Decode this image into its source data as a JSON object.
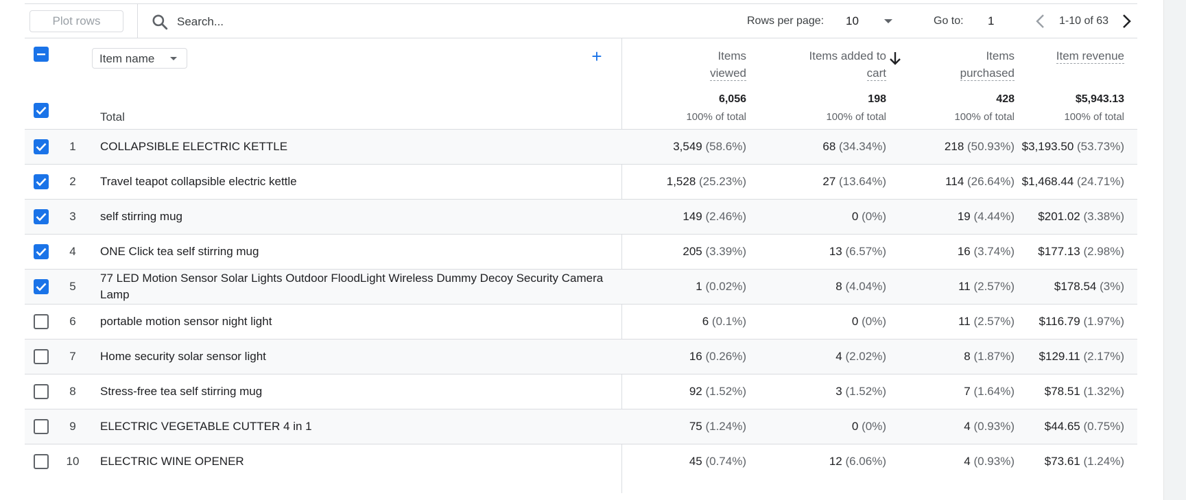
{
  "toolbar": {
    "plot_rows_label": "Plot rows",
    "search_placeholder": "Search...",
    "rows_per_page_label": "Rows per page:",
    "rows_per_page_value": "10",
    "goto_label": "Go to:",
    "goto_value": "1",
    "page_range": "1-10 of 63"
  },
  "header": {
    "dimension_label": "Item name",
    "columns": [
      {
        "line1": "Items",
        "line2": "viewed"
      },
      {
        "line1": "Items added to",
        "line2": "cart"
      },
      {
        "line1": "Items",
        "line2": "purchased"
      },
      {
        "line1": "Item revenue",
        "line2": ""
      }
    ],
    "sorted_column": "Items purchased"
  },
  "totals": {
    "label": "Total",
    "values": [
      "6,056",
      "198",
      "428",
      "$5,943.13"
    ],
    "pcts": [
      "100% of total",
      "100% of total",
      "100% of total",
      "100% of total"
    ]
  },
  "rows": [
    {
      "num": "1",
      "name": "COLLAPSIBLE ELECTRIC KETTLE",
      "checked": true,
      "cells": [
        [
          "3,549",
          "(58.6%)"
        ],
        [
          "68",
          "(34.34%)"
        ],
        [
          "218",
          "(50.93%)"
        ],
        [
          "$3,193.50",
          "(53.73%)"
        ]
      ]
    },
    {
      "num": "2",
      "name": "Travel teapot collapsible electric kettle",
      "checked": true,
      "cells": [
        [
          "1,528",
          "(25.23%)"
        ],
        [
          "27",
          "(13.64%)"
        ],
        [
          "114",
          "(26.64%)"
        ],
        [
          "$1,468.44",
          "(24.71%)"
        ]
      ]
    },
    {
      "num": "3",
      "name": "self stirring mug",
      "checked": true,
      "cells": [
        [
          "149",
          "(2.46%)"
        ],
        [
          "0",
          "(0%)"
        ],
        [
          "19",
          "(4.44%)"
        ],
        [
          "$201.02",
          "(3.38%)"
        ]
      ]
    },
    {
      "num": "4",
      "name": "ONE Click tea self stirring mug",
      "checked": true,
      "cells": [
        [
          "205",
          "(3.39%)"
        ],
        [
          "13",
          "(6.57%)"
        ],
        [
          "16",
          "(3.74%)"
        ],
        [
          "$177.13",
          "(2.98%)"
        ]
      ]
    },
    {
      "num": "5",
      "name": "77 LED Motion Sensor Solar Lights Outdoor FloodLight Wireless Dummy Decoy Security Camera Lamp",
      "checked": true,
      "cells": [
        [
          "1",
          "(0.02%)"
        ],
        [
          "8",
          "(4.04%)"
        ],
        [
          "11",
          "(2.57%)"
        ],
        [
          "$178.54",
          "(3%)"
        ]
      ]
    },
    {
      "num": "6",
      "name": "portable motion sensor night light",
      "checked": false,
      "cells": [
        [
          "6",
          "(0.1%)"
        ],
        [
          "0",
          "(0%)"
        ],
        [
          "11",
          "(2.57%)"
        ],
        [
          "$116.79",
          "(1.97%)"
        ]
      ]
    },
    {
      "num": "7",
      "name": "Home security solar sensor light",
      "checked": false,
      "cells": [
        [
          "16",
          "(0.26%)"
        ],
        [
          "4",
          "(2.02%)"
        ],
        [
          "8",
          "(1.87%)"
        ],
        [
          "$129.11",
          "(2.17%)"
        ]
      ]
    },
    {
      "num": "8",
      "name": "Stress-free tea self stirring mug",
      "checked": false,
      "cells": [
        [
          "92",
          "(1.52%)"
        ],
        [
          "3",
          "(1.52%)"
        ],
        [
          "7",
          "(1.64%)"
        ],
        [
          "$78.51",
          "(1.32%)"
        ]
      ]
    },
    {
      "num": "9",
      "name": "ELECTRIC VEGETABLE CUTTER 4 in 1",
      "checked": false,
      "cells": [
        [
          "75",
          "(1.24%)"
        ],
        [
          "0",
          "(0%)"
        ],
        [
          "4",
          "(0.93%)"
        ],
        [
          "$44.65",
          "(0.75%)"
        ]
      ]
    },
    {
      "num": "10",
      "name": "ELECTRIC WINE OPENER",
      "checked": false,
      "cells": [
        [
          "45",
          "(0.74%)"
        ],
        [
          "12",
          "(6.06%)"
        ],
        [
          "4",
          "(0.93%)"
        ],
        [
          "$73.61",
          "(1.24%)"
        ]
      ]
    }
  ],
  "colors": {
    "accent": "#1a73e8",
    "border": "#dadce0",
    "alt_row": "#f8f9fa",
    "muted_text": "#5f6368"
  }
}
